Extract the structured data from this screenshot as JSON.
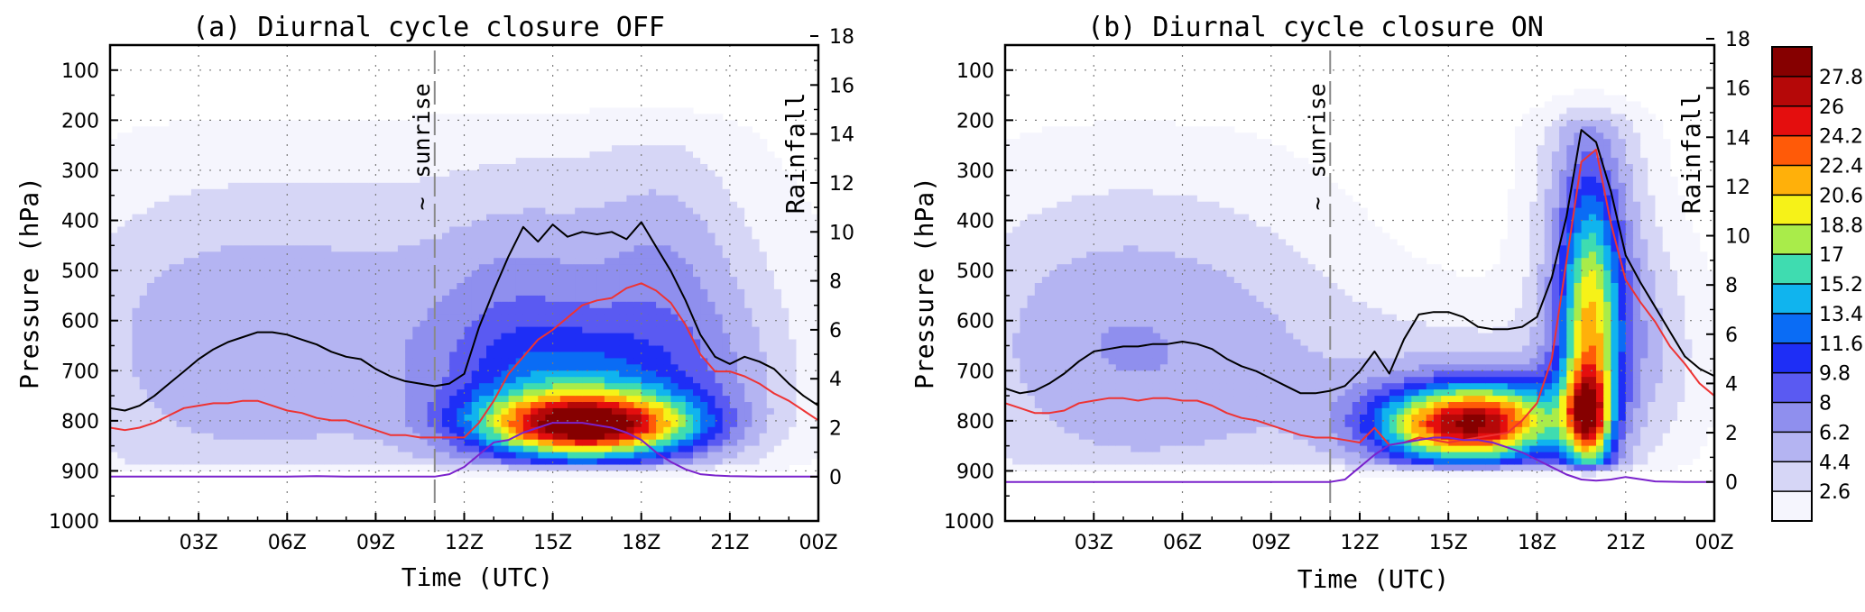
{
  "chart_data": [
    {
      "type": "heatmap",
      "title": "(a) Diurnal cycle closure OFF",
      "xlabel": "Time (UTC)",
      "ylabel": "Pressure (hPa)",
      "y2label": "Rainfall",
      "x_ticks": [
        "03Z",
        "06Z",
        "09Z",
        "12Z",
        "15Z",
        "18Z",
        "21Z",
        "00Z"
      ],
      "y_ticks": [
        100,
        200,
        300,
        400,
        500,
        600,
        700,
        800,
        900,
        1000
      ],
      "y2_ticks": [
        0,
        2,
        4,
        6,
        8,
        10,
        12,
        14,
        16,
        18
      ],
      "xlim_hours": [
        0,
        24
      ],
      "ylim": [
        1000,
        50
      ],
      "y2lim": [
        -1,
        18
      ],
      "grid": true,
      "annotation": {
        "text": "sunrise",
        "symbol": "~",
        "hour": 11
      },
      "field_blobs": [
        {
          "t": 4.5,
          "p": 650,
          "st": 4.5,
          "sp": 260,
          "a": 4.2
        },
        {
          "t": 2.0,
          "p": 640,
          "st": 3.0,
          "sp": 200,
          "a": 1.6
        },
        {
          "t": 8.5,
          "p": 650,
          "st": 3.0,
          "sp": 220,
          "a": 1.4
        },
        {
          "t": 16.0,
          "p": 560,
          "st": 4.5,
          "sp": 230,
          "a": 5.0
        },
        {
          "t": 13.5,
          "p": 620,
          "st": 1.8,
          "sp": 160,
          "a": 2.0
        },
        {
          "t": 19.0,
          "p": 520,
          "st": 1.6,
          "sp": 200,
          "a": 2.5
        },
        {
          "t": 21.5,
          "p": 700,
          "st": 1.5,
          "sp": 140,
          "a": 1.8
        },
        {
          "t": 16.0,
          "p": 745,
          "st": 3.0,
          "sp": 100,
          "a": 8.0
        },
        {
          "t": 16.2,
          "p": 810,
          "st": 2.6,
          "sp": 45,
          "a": 22.0
        }
      ],
      "series": [
        {
          "color": "#000000",
          "x": [
            0,
            0.5,
            1,
            1.5,
            2,
            2.5,
            3,
            3.5,
            4,
            4.5,
            5,
            5.5,
            6,
            6.5,
            7,
            7.5,
            8,
            8.5,
            9,
            9.5,
            10,
            10.5,
            11,
            11.5,
            12,
            12.5,
            13,
            13.5,
            14,
            14.5,
            15,
            15.5,
            16,
            16.5,
            17,
            17.5,
            18,
            18.5,
            19,
            19.5,
            20,
            20.5,
            21,
            21.5,
            22,
            22.5,
            23,
            23.5,
            24
          ],
          "y": [
            2.8,
            2.7,
            2.9,
            3.3,
            3.8,
            4.3,
            4.8,
            5.2,
            5.5,
            5.7,
            5.9,
            5.9,
            5.8,
            5.6,
            5.4,
            5.1,
            4.9,
            4.8,
            4.4,
            4.1,
            3.9,
            3.8,
            3.7,
            3.8,
            4.2,
            6.1,
            7.6,
            9.0,
            10.2,
            9.6,
            10.3,
            9.8,
            10.0,
            9.9,
            10.0,
            9.7,
            10.4,
            9.4,
            8.4,
            7.2,
            5.8,
            4.9,
            4.6,
            4.9,
            4.7,
            4.4,
            3.8,
            3.3,
            2.9
          ]
        },
        {
          "color": "#ee3333",
          "x": [
            0,
            0.5,
            1,
            1.5,
            2,
            2.5,
            3,
            3.5,
            4,
            4.5,
            5,
            5.5,
            6,
            6.5,
            7,
            7.5,
            8,
            8.5,
            9,
            9.5,
            10,
            10.5,
            11,
            11.5,
            12,
            12.5,
            13,
            13.5,
            14,
            14.5,
            15,
            15.5,
            16,
            16.5,
            17,
            17.5,
            18,
            18.5,
            19,
            19.5,
            20,
            20.5,
            21,
            21.5,
            22,
            22.5,
            23,
            23.5,
            24
          ],
          "y": [
            2.0,
            1.9,
            2.0,
            2.2,
            2.5,
            2.8,
            2.9,
            3.0,
            3.0,
            3.1,
            3.1,
            2.9,
            2.7,
            2.6,
            2.4,
            2.3,
            2.3,
            2.1,
            1.9,
            1.7,
            1.7,
            1.6,
            1.6,
            1.6,
            1.6,
            2.2,
            3.1,
            4.2,
            4.9,
            5.6,
            6.0,
            6.5,
            7.0,
            7.2,
            7.3,
            7.7,
            7.9,
            7.6,
            7.1,
            6.2,
            5.0,
            4.3,
            4.3,
            4.1,
            3.8,
            3.4,
            3.1,
            2.7,
            2.3
          ]
        },
        {
          "color": "#7a22cc",
          "x": [
            0,
            1,
            2,
            3,
            4,
            5,
            6,
            7,
            8,
            9,
            10,
            11,
            11.5,
            12,
            12.5,
            13,
            13.5,
            14,
            14.5,
            15,
            15.5,
            16,
            16.5,
            17,
            17.5,
            18,
            18.5,
            19,
            19.5,
            20,
            20.5,
            21,
            22,
            23,
            24
          ],
          "y": [
            0,
            0,
            0,
            0,
            0,
            0,
            0,
            0.02,
            0,
            0,
            0,
            0,
            0.1,
            0.4,
            0.9,
            1.4,
            1.5,
            1.8,
            2.0,
            2.2,
            2.2,
            2.2,
            2.1,
            2.0,
            1.8,
            1.5,
            1.0,
            0.6,
            0.3,
            0.1,
            0.05,
            0.02,
            0,
            0,
            0
          ]
        }
      ]
    },
    {
      "type": "heatmap",
      "title": "(b) Diurnal cycle closure ON",
      "xlabel": "Time (UTC)",
      "ylabel": "Pressure (hPa)",
      "y2label": "Rainfall",
      "x_ticks": [
        "03Z",
        "06Z",
        "09Z",
        "12Z",
        "15Z",
        "18Z",
        "21Z",
        "00Z"
      ],
      "y_ticks": [
        100,
        200,
        300,
        400,
        500,
        600,
        700,
        800,
        900,
        1000
      ],
      "y2_ticks": [
        0,
        2,
        4,
        6,
        8,
        10,
        12,
        14,
        16,
        18
      ],
      "xlim_hours": [
        0,
        24
      ],
      "ylim": [
        1000,
        50
      ],
      "y2lim": [
        -1,
        18
      ],
      "grid": true,
      "annotation": {
        "text": "sunrise",
        "symbol": "~",
        "hour": 11
      },
      "field_blobs": [
        {
          "t": 4.5,
          "p": 660,
          "st": 4.5,
          "sp": 250,
          "a": 4.6
        },
        {
          "t": 2.0,
          "p": 640,
          "st": 3.0,
          "sp": 200,
          "a": 1.6
        },
        {
          "t": 8.5,
          "p": 660,
          "st": 3.0,
          "sp": 210,
          "a": 1.4
        },
        {
          "t": 15.0,
          "p": 760,
          "st": 3.5,
          "sp": 130,
          "a": 4.0
        },
        {
          "t": 15.2,
          "p": 810,
          "st": 2.0,
          "sp": 55,
          "a": 20.0
        },
        {
          "t": 17.0,
          "p": 795,
          "st": 1.5,
          "sp": 60,
          "a": 8.0
        },
        {
          "t": 19.8,
          "p": 480,
          "st": 1.3,
          "sp": 280,
          "a": 8.0
        },
        {
          "t": 19.8,
          "p": 650,
          "st": 0.7,
          "sp": 200,
          "a": 13.0
        },
        {
          "t": 19.7,
          "p": 790,
          "st": 0.5,
          "sp": 60,
          "a": 12.0
        },
        {
          "t": 22.0,
          "p": 650,
          "st": 1.4,
          "sp": 160,
          "a": 3.0
        }
      ],
      "series": [
        {
          "color": "#000000",
          "x": [
            0,
            0.5,
            1,
            1.5,
            2,
            2.5,
            3,
            3.5,
            4,
            4.5,
            5,
            5.5,
            6,
            6.5,
            7,
            7.5,
            8,
            8.5,
            9,
            9.5,
            10,
            10.5,
            11,
            11.5,
            12,
            12.5,
            13,
            13.5,
            14,
            14.5,
            15,
            15.5,
            16,
            16.5,
            17,
            17.5,
            18,
            18.5,
            19,
            19.5,
            20,
            20.5,
            21,
            21.5,
            22,
            22.5,
            23,
            23.5,
            24
          ],
          "y": [
            3.8,
            3.6,
            3.7,
            4.0,
            4.4,
            4.9,
            5.3,
            5.4,
            5.5,
            5.5,
            5.6,
            5.6,
            5.7,
            5.6,
            5.4,
            5.0,
            4.7,
            4.5,
            4.2,
            3.9,
            3.6,
            3.6,
            3.7,
            3.9,
            4.5,
            5.3,
            4.4,
            5.8,
            6.8,
            6.9,
            6.9,
            6.7,
            6.3,
            6.2,
            6.2,
            6.3,
            6.7,
            8.3,
            10.8,
            14.3,
            13.8,
            11.8,
            9.2,
            8.1,
            7.1,
            6.1,
            5.1,
            4.6,
            4.3
          ]
        },
        {
          "color": "#ee3333",
          "x": [
            0,
            0.5,
            1,
            1.5,
            2,
            2.5,
            3,
            3.5,
            4,
            4.5,
            5,
            5.5,
            6,
            6.5,
            7,
            7.5,
            8,
            8.5,
            9,
            9.5,
            10,
            10.5,
            11,
            11.5,
            12,
            12.5,
            13,
            13.5,
            14,
            14.5,
            15,
            15.5,
            16,
            16.5,
            17,
            17.5,
            18,
            18.5,
            19,
            19.5,
            20,
            20.5,
            21,
            21.5,
            22,
            22.5,
            23,
            23.5,
            24
          ],
          "y": [
            3.2,
            3.0,
            2.8,
            2.8,
            2.9,
            3.2,
            3.3,
            3.4,
            3.4,
            3.3,
            3.4,
            3.4,
            3.3,
            3.3,
            3.1,
            2.8,
            2.6,
            2.5,
            2.3,
            2.1,
            1.9,
            1.8,
            1.8,
            1.7,
            1.6,
            2.2,
            1.5,
            1.6,
            1.8,
            1.7,
            1.6,
            1.7,
            1.8,
            1.9,
            2.0,
            2.5,
            3.2,
            5.0,
            9.0,
            13.0,
            13.5,
            10.5,
            8.2,
            7.3,
            6.5,
            5.5,
            4.8,
            4.0,
            3.5
          ]
        },
        {
          "color": "#7a22cc",
          "x": [
            0,
            1,
            2,
            3,
            4,
            5,
            6,
            7,
            8,
            9,
            10,
            11,
            11.5,
            12,
            12.5,
            13,
            13.5,
            14,
            14.5,
            15,
            15.5,
            16,
            16.5,
            17,
            17.5,
            18,
            18.5,
            19,
            19.5,
            20,
            20.5,
            21,
            22,
            23,
            24
          ],
          "y": [
            0,
            0,
            0,
            0,
            0,
            0,
            0,
            0,
            0,
            0,
            0,
            0,
            0.1,
            0.6,
            1.1,
            1.5,
            1.6,
            1.7,
            1.8,
            1.8,
            1.7,
            1.7,
            1.6,
            1.4,
            1.2,
            0.9,
            0.6,
            0.3,
            0.1,
            0.05,
            0.1,
            0.2,
            0.02,
            0,
            0
          ]
        }
      ]
    }
  ],
  "colorbar": {
    "labels": [
      "2.6",
      "4.4",
      "6.2",
      "8",
      "9.8",
      "11.6",
      "13.4",
      "15.2",
      "17",
      "18.8",
      "20.6",
      "22.4",
      "24.2",
      "26",
      "27.8"
    ],
    "colors": [
      "#f5f5fd",
      "#d6d6f6",
      "#b4b4f2",
      "#8f8fee",
      "#5a5af2",
      "#1e2ef6",
      "#0a6cf5",
      "#10b4ee",
      "#3fdcb0",
      "#a9ec4a",
      "#f6f218",
      "#ffb00a",
      "#ff5a08",
      "#e40e0e",
      "#b50808",
      "#860000"
    ]
  }
}
